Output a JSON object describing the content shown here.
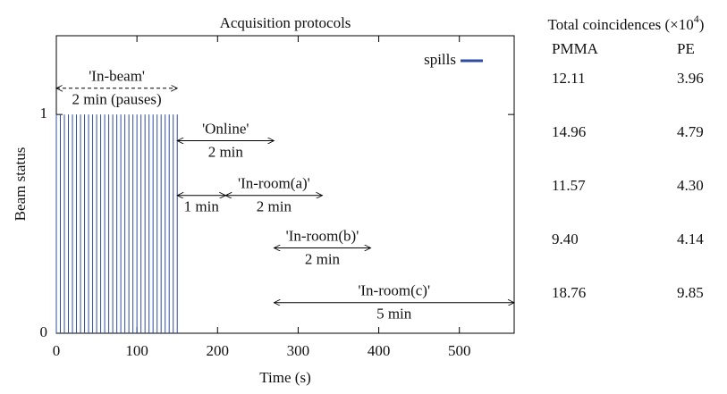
{
  "chart_data": {
    "type": "spikes",
    "title": "Acquisition protocols",
    "x_label": "Time (s)",
    "y_label": "Beam status",
    "xlim": [
      0,
      568
    ],
    "ylim": [
      0,
      1.36
    ],
    "xticks": [
      0,
      100,
      200,
      300,
      400,
      500
    ],
    "yticks": [
      0,
      1
    ],
    "legend": "top-right",
    "series": [
      {
        "name": "spills",
        "color": "#2f4da0",
        "x": [
          0,
          5,
          10,
          15,
          20,
          25,
          30,
          35,
          40,
          45,
          50,
          55,
          60,
          65,
          70,
          75,
          80,
          85,
          90,
          95,
          100,
          105,
          110,
          115,
          120,
          125,
          130,
          135,
          140,
          145,
          150
        ],
        "values": [
          1,
          1,
          1,
          1,
          1,
          1,
          1,
          1,
          1,
          1,
          1,
          1,
          1,
          1,
          1,
          1,
          1,
          1,
          1,
          1,
          1,
          1,
          1,
          1,
          1,
          1,
          1,
          1,
          1,
          1,
          1
        ]
      }
    ],
    "annotations": [
      {
        "above": "'In-beam'",
        "below": "2 min (pauses)",
        "x": [
          0,
          150
        ],
        "y": 1.12,
        "dashed": true
      },
      {
        "above": "'Online'",
        "below": "2 min",
        "x": [
          150,
          270
        ],
        "y": 0.88
      },
      {
        "below": "1 min",
        "x": [
          150,
          210
        ],
        "y": 0.63
      },
      {
        "above": "'In-room(a)'",
        "below": "2 min",
        "x": [
          210,
          330
        ],
        "y": 0.63
      },
      {
        "above": "'In-room(b)'",
        "below": "2 min",
        "x": [
          270,
          390
        ],
        "y": 0.39
      },
      {
        "above": "'In-room(c)'",
        "below": "5 min",
        "x": [
          270,
          568
        ],
        "y": 0.14
      }
    ]
  },
  "table": {
    "title": "Total coincidences (×10",
    "title_exp": "4",
    "title_end": ")",
    "columns": [
      "PMMA",
      "PE"
    ],
    "rows": [
      [
        "12.11",
        "3.96"
      ],
      [
        "14.96",
        "4.79"
      ],
      [
        "11.57",
        "4.30"
      ],
      [
        "9.40",
        "4.14"
      ],
      [
        "18.76",
        "9.85"
      ]
    ]
  }
}
